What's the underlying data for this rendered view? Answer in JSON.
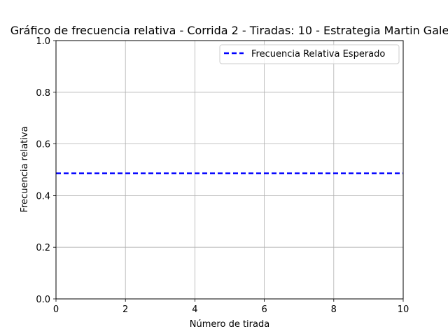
{
  "chart_data": {
    "type": "line",
    "title": "Gráfico de frecuencia relativa - Corrida 2 - Tiradas: 10 - Estrategia Martin Gale",
    "xlabel": "Número de tirada",
    "ylabel": "Frecuencia relativa",
    "xlim": [
      0,
      10
    ],
    "ylim": [
      0,
      1.0
    ],
    "x_ticks": [
      0,
      2,
      4,
      6,
      8,
      10
    ],
    "y_ticks": [
      0.0,
      0.2,
      0.4,
      0.6,
      0.8,
      1.0
    ],
    "x_tick_labels": [
      "0",
      "2",
      "4",
      "6",
      "8",
      "10"
    ],
    "y_tick_labels": [
      "0.0",
      "0.2",
      "0.4",
      "0.6",
      "0.8",
      "1.0"
    ],
    "grid": true,
    "legend_position": "top-right",
    "series": [
      {
        "name": "Frecuencia Relativa Esperado",
        "style": "dashed",
        "color": "#0000ff",
        "x": [
          0,
          10
        ],
        "y": [
          0.486,
          0.486
        ]
      }
    ]
  }
}
